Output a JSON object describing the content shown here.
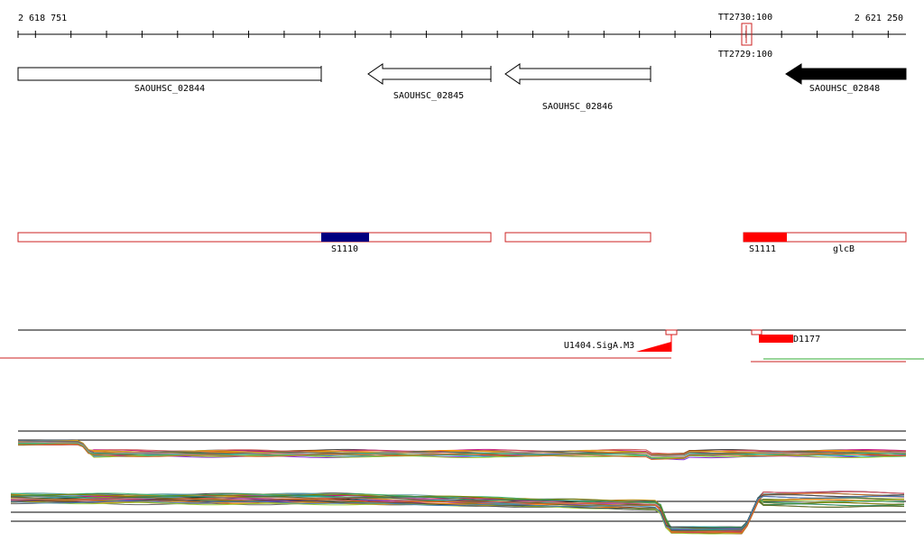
{
  "ruler": {
    "start_label": "2 618 751",
    "end_label": "2 621 250",
    "start": 2618751,
    "end": 2621250,
    "tick_step": 100
  },
  "terminators": [
    {
      "name": "TT2730:100",
      "position": 2620764
    },
    {
      "name": "TT2729:100",
      "position": 2620764
    }
  ],
  "genes": [
    {
      "name": "SAOUHSC_02844",
      "start": 2618751,
      "end": 2619605,
      "strand": "+",
      "filled": false
    },
    {
      "name": "SAOUHSC_02845",
      "start": 2619720,
      "end": 2620083,
      "strand": "-",
      "filled": false
    },
    {
      "name": "SAOUHSC_02846",
      "start": 2620118,
      "end": 2620503,
      "strand": "-",
      "filled": false
    },
    {
      "name": "SAOUHSC_02848",
      "start": 2620882,
      "end": 2621250,
      "strand": "-",
      "filled": true
    }
  ],
  "segments": [
    {
      "start": 2618751,
      "end": 2620083
    },
    {
      "start": 2620118,
      "end": 2620503
    },
    {
      "start": 2620766,
      "end": 2621250
    }
  ],
  "features": [
    {
      "name": "S1110",
      "start": 2619605,
      "end": 2619740,
      "color": "#000080"
    },
    {
      "name": "S1111",
      "start": 2620766,
      "end": 2620885,
      "color": "#ff0000"
    },
    {
      "name": "glcB",
      "label_only": true
    }
  ],
  "promoters": [
    {
      "name": "U1404.SigA.M3",
      "strand": "-",
      "position": 2620644
    },
    {
      "name": "D1177",
      "strand": "+",
      "position": 2620784
    }
  ],
  "colors": {
    "gene_outline": "#000000",
    "segment_outline": "#cc2222",
    "promoter": "#ff0000",
    "coverage_green": "#33aa33"
  }
}
